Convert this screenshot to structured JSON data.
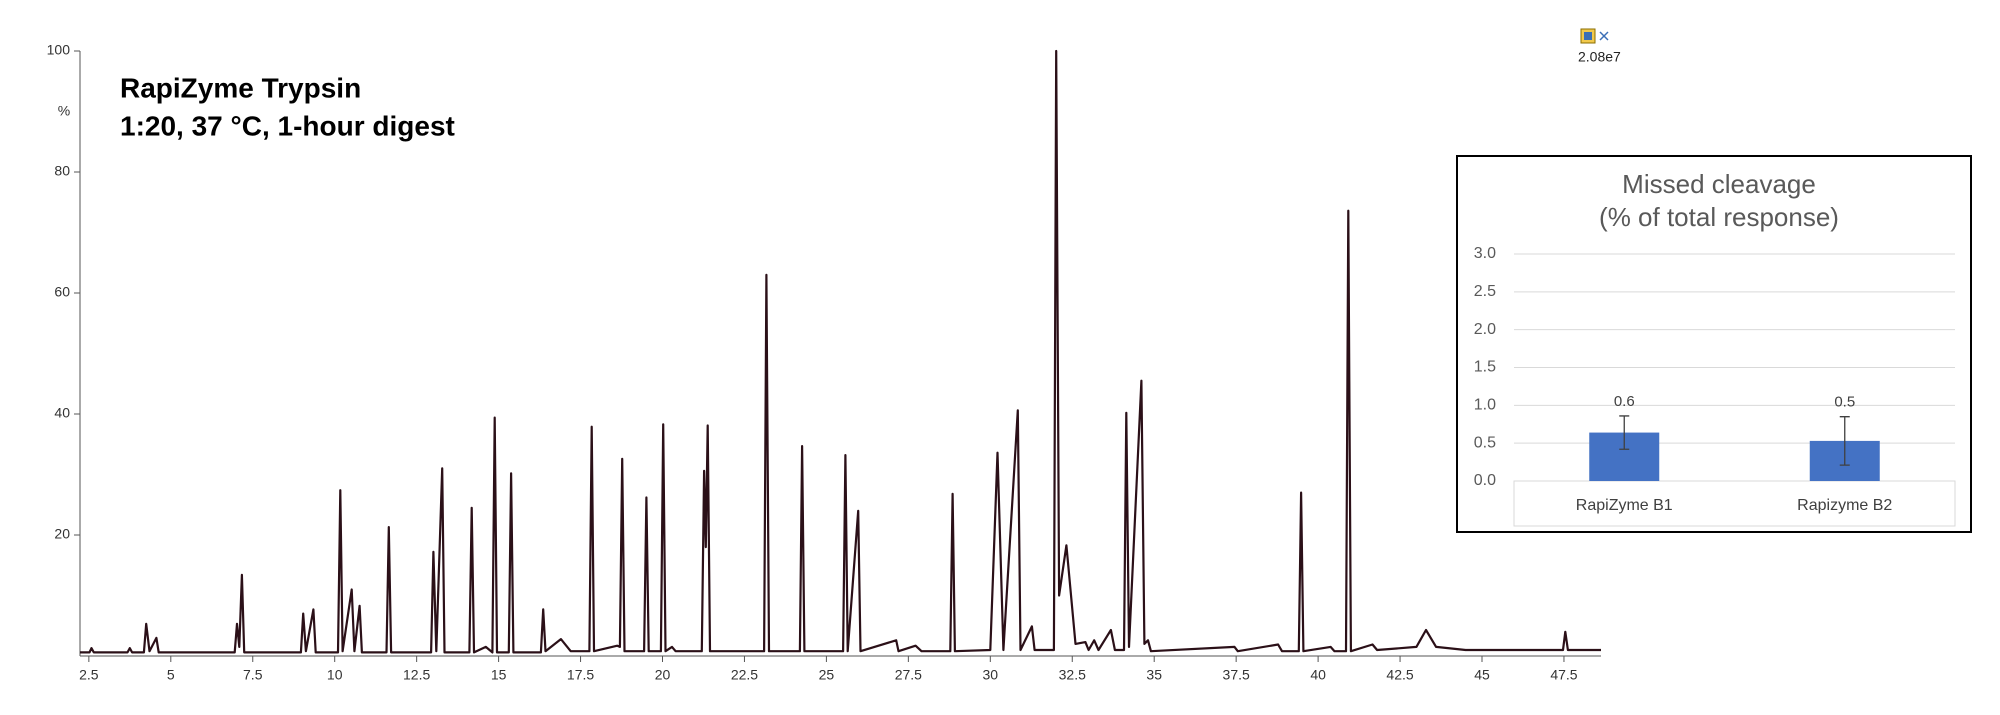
{
  "chart_data": [
    {
      "type": "line",
      "title": "RapiZyme Trypsin",
      "subtitle": "1:20, 37 °C, 1-hour digest",
      "ylabel": "%",
      "annotation": "2.08e7",
      "color": "#2b1018",
      "xlim": [
        2.23,
        48.63
      ],
      "xticks": [
        2.5,
        5,
        7.5,
        10,
        12.5,
        15,
        17.5,
        20,
        22.5,
        25,
        27.5,
        30,
        32.5,
        35,
        37.5,
        40,
        42.5,
        45,
        47.5
      ],
      "ylim": [
        0,
        100
      ],
      "yticks": [
        20,
        40,
        60,
        80,
        100
      ],
      "x": [
        2.23,
        2.52,
        2.58,
        2.65,
        3.68,
        3.75,
        3.82,
        4.18,
        4.25,
        4.35,
        4.56,
        4.63,
        6.95,
        7.02,
        7.09,
        7.17,
        7.24,
        8.97,
        9.04,
        9.12,
        9.35,
        9.42,
        10.1,
        10.17,
        10.24,
        10.52,
        10.6,
        10.76,
        10.83,
        11.58,
        11.65,
        11.72,
        12.94,
        13.01,
        13.1,
        13.28,
        13.35,
        14.11,
        14.18,
        14.25,
        14.61,
        14.81,
        14.88,
        14.95,
        15.31,
        15.38,
        15.45,
        16.29,
        16.36,
        16.43,
        16.9,
        17.2,
        17.77,
        17.84,
        17.91,
        18.62,
        18.7,
        18.77,
        18.84,
        19.44,
        19.51,
        19.58,
        19.95,
        20.02,
        20.09,
        20.29,
        20.4,
        21.2,
        21.27,
        21.32,
        21.38,
        21.45,
        23.1,
        23.17,
        23.25,
        24.19,
        24.26,
        24.33,
        25.51,
        25.58,
        25.65,
        25.97,
        26.04,
        27.13,
        27.2,
        27.72,
        27.9,
        28.78,
        28.85,
        28.92,
        30.0,
        30.22,
        30.4,
        30.84,
        30.92,
        31.27,
        31.35,
        31.94,
        32.01,
        32.1,
        32.32,
        32.6,
        32.9,
        33.0,
        33.17,
        33.3,
        33.68,
        33.8,
        34.08,
        34.15,
        34.23,
        34.61,
        34.7,
        34.81,
        34.9,
        37.45,
        37.55,
        38.78,
        38.9,
        39.41,
        39.48,
        39.55,
        40.38,
        40.5,
        40.85,
        40.92,
        41.0,
        41.66,
        41.8,
        43.0,
        43.29,
        43.6,
        44.5,
        47.47,
        47.54,
        47.62,
        48.63
      ],
      "y": [
        0.6,
        0.6,
        1.3,
        0.6,
        0.6,
        1.3,
        0.6,
        0.6,
        5.3,
        0.8,
        3,
        0.6,
        0.6,
        5.3,
        1.5,
        13.4,
        0.6,
        0.6,
        7,
        0.8,
        7.7,
        0.6,
        0.6,
        27.4,
        0.8,
        11,
        0.8,
        8.3,
        0.6,
        0.6,
        21.3,
        0.6,
        0.6,
        17.2,
        0.8,
        31,
        0.6,
        0.6,
        24.5,
        0.6,
        1.5,
        0.6,
        39.4,
        0.6,
        0.6,
        30.2,
        0.6,
        0.6,
        7.7,
        0.8,
        2.8,
        0.8,
        0.8,
        37.9,
        0.8,
        1.7,
        1.5,
        32.6,
        0.8,
        0.8,
        26.2,
        0.8,
        0.8,
        38.3,
        0.8,
        1.5,
        0.8,
        0.8,
        30.6,
        18,
        38.1,
        0.8,
        0.8,
        63,
        0.8,
        0.8,
        34.7,
        0.8,
        0.8,
        33.2,
        0.8,
        24,
        0.8,
        2.6,
        0.8,
        1.7,
        0.8,
        0.8,
        26.8,
        0.8,
        1,
        33.6,
        1,
        40.6,
        1,
        4.9,
        1,
        1,
        100,
        10,
        18.3,
        2,
        2.3,
        1,
        2.6,
        1,
        4.3,
        1,
        1,
        40.2,
        1.5,
        45.5,
        2,
        2.6,
        0.8,
        1.5,
        0.8,
        1.9,
        0.8,
        0.8,
        27,
        0.8,
        1.5,
        0.8,
        0.8,
        73.6,
        0.8,
        1.9,
        1,
        1.5,
        4.3,
        1.5,
        1,
        1,
        4,
        1,
        1
      ]
    },
    {
      "type": "bar",
      "title": "Missed cleavage",
      "subtitle": "(% of total response)",
      "categories": [
        "RapiZyme B1",
        "Rapizyme B2"
      ],
      "values": [
        0.64,
        0.53
      ],
      "value_labels": [
        "0.6",
        "0.5"
      ],
      "errors": [
        0.22,
        0.32
      ],
      "color": "#4472c4",
      "ylim": [
        0,
        3
      ],
      "yticks": [
        {
          "value": 0,
          "label": "0.0"
        },
        0.5,
        {
          "value": 1,
          "label": "1.0"
        },
        1.5,
        {
          "value": 2,
          "label": "2.0"
        },
        2.5,
        {
          "value": 3,
          "label": "3.0"
        }
      ],
      "grid": true
    }
  ]
}
